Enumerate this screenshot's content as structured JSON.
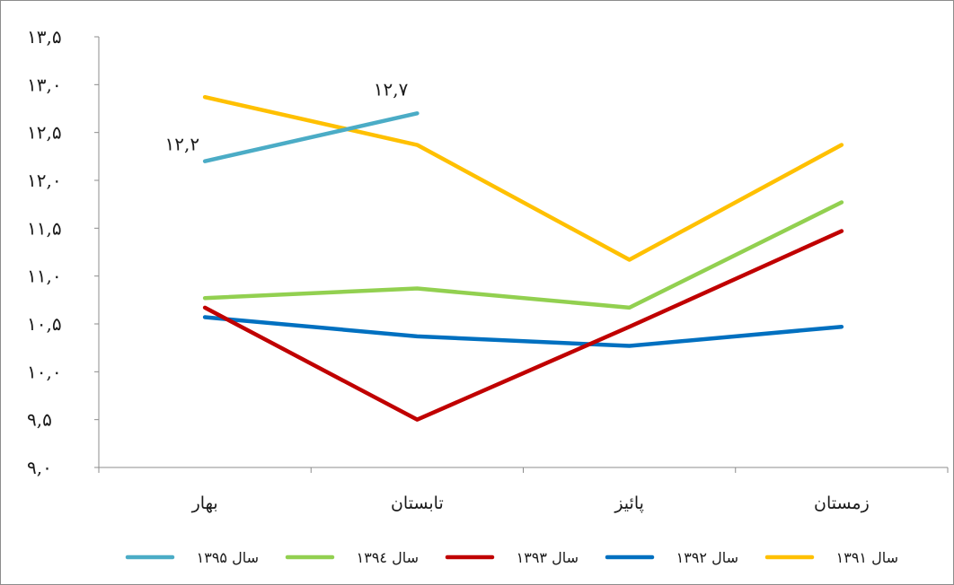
{
  "chart_data": {
    "type": "line",
    "title": "",
    "xlabel": "",
    "ylabel": "",
    "ylim": [
      9.0,
      13.5
    ],
    "yticks": [
      9.0,
      9.5,
      10.0,
      10.5,
      11.0,
      11.5,
      12.0,
      12.5,
      13.0,
      13.5
    ],
    "ytick_labels": [
      "۹,۰",
      "۹,۵",
      "۱۰,۰",
      "۱۰,۵",
      "۱۱,۰",
      "۱۱,۵",
      "۱۲,۰",
      "۱۲,۵",
      "۱۳,۰",
      "۱۳,۵"
    ],
    "categories": [
      "بهار",
      "تابستان",
      "پائیز",
      "زمستان"
    ],
    "grid": false,
    "legend_position": "bottom",
    "series": [
      {
        "name": "سال ۱۳۹۱",
        "color": "#FFC000",
        "values": [
          12.87,
          12.37,
          11.17,
          12.37
        ]
      },
      {
        "name": "سال ۱۳۹۲",
        "color": "#0070C0",
        "values": [
          10.57,
          10.37,
          10.27,
          10.47
        ]
      },
      {
        "name": "سال ۱۳۹۳",
        "color": "#C00000",
        "values": [
          10.67,
          9.5,
          10.47,
          11.47
        ]
      },
      {
        "name": "سال ۱۳۹٤",
        "color": "#92D050",
        "values": [
          10.77,
          10.87,
          10.67,
          11.77
        ]
      },
      {
        "name": "سال ۱۳۹۵",
        "color": "#4BACC6",
        "values": [
          12.2,
          12.7,
          null,
          null
        ]
      }
    ],
    "annotations": [
      {
        "series": 4,
        "point": 0,
        "text": "۱۲,۲"
      },
      {
        "series": 4,
        "point": 1,
        "text": "۱۲,۷"
      }
    ]
  }
}
